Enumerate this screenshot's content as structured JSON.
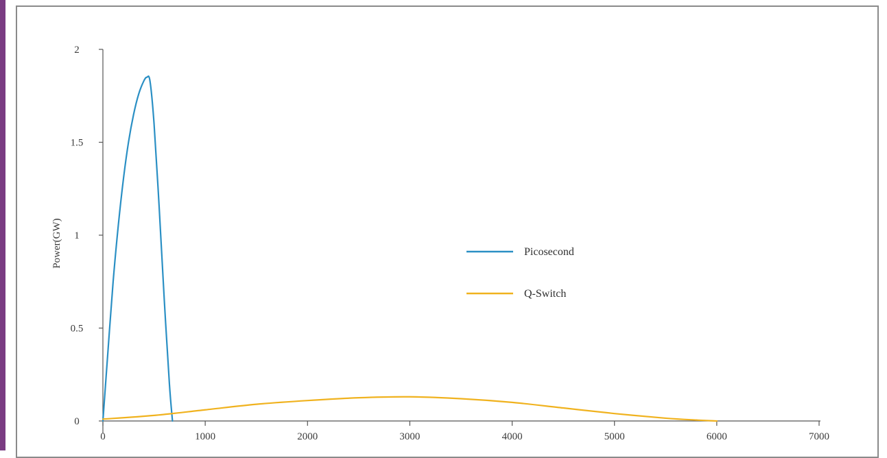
{
  "chart_data": {
    "type": "line",
    "title": "",
    "xlabel": "",
    "ylabel": "Power(GW)",
    "xlim": [
      0,
      7000
    ],
    "ylim": [
      0,
      2
    ],
    "x_ticks": [
      "0",
      "1000",
      "2000",
      "3000",
      "4000",
      "5000",
      "6000",
      "7000"
    ],
    "y_ticks": [
      "0",
      "0.5",
      "1",
      "1.5",
      "2"
    ],
    "grid": false,
    "legend_position": "center-right",
    "series": [
      {
        "name": "Picosecond",
        "color": "#2a8fc4",
        "x": [
          0,
          50,
          100,
          150,
          200,
          250,
          300,
          350,
          400,
          430,
          460,
          500,
          550,
          600,
          650,
          680
        ],
        "y": [
          0,
          0.38,
          0.75,
          1.05,
          1.3,
          1.5,
          1.65,
          1.76,
          1.83,
          1.85,
          1.83,
          1.6,
          1.15,
          0.65,
          0.2,
          0
        ]
      },
      {
        "name": "Q-Switch",
        "color": "#f0b21e",
        "x": [
          0,
          500,
          1000,
          1500,
          2000,
          2500,
          3000,
          3500,
          4000,
          4500,
          5000,
          5500,
          5800,
          6000
        ],
        "y": [
          0.01,
          0.03,
          0.06,
          0.09,
          0.11,
          0.125,
          0.13,
          0.12,
          0.1,
          0.07,
          0.04,
          0.015,
          0.005,
          0
        ]
      }
    ]
  }
}
